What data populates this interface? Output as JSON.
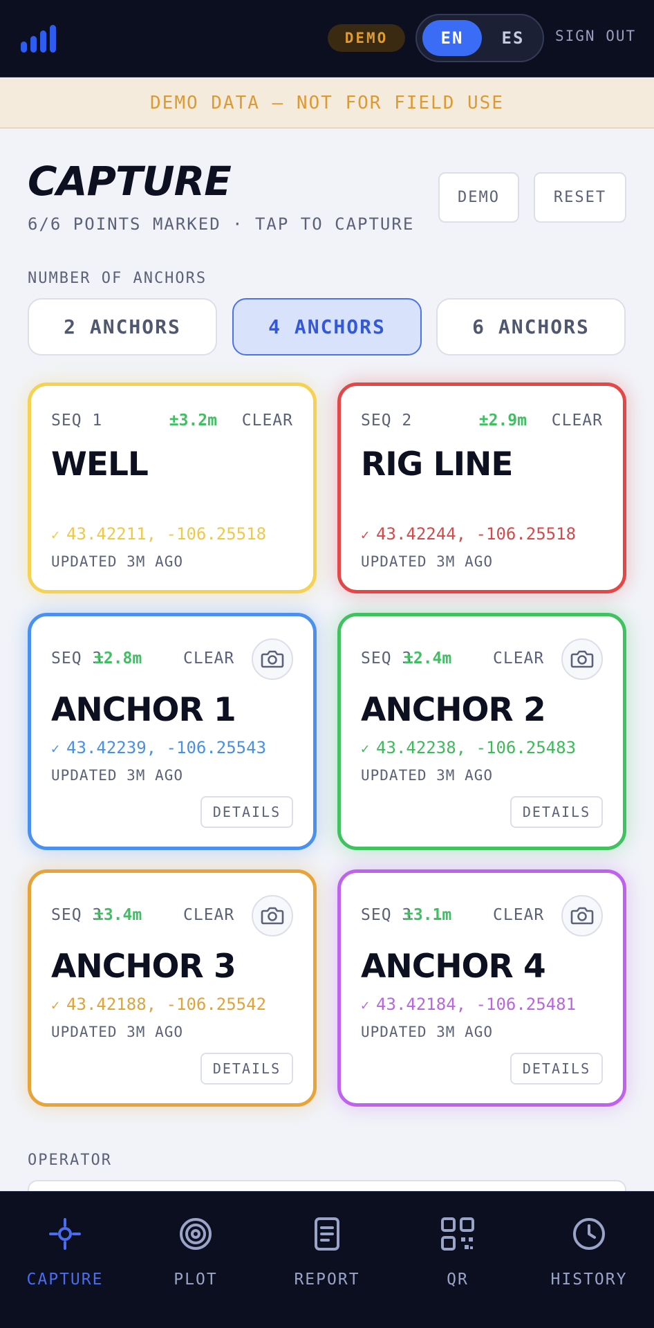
{
  "header": {
    "demo_badge": "DEMO",
    "lang_en": "EN",
    "lang_es": "ES",
    "sign_out": "SIGN OUT"
  },
  "banner": "DEMO DATA — NOT FOR FIELD USE",
  "page": {
    "title": "CAPTURE",
    "subtitle": "6/6 POINTS MARKED · TAP TO CAPTURE",
    "demo_button": "DEMO",
    "reset_button": "RESET"
  },
  "anchors": {
    "label": "NUMBER OF ANCHORS",
    "options": [
      "2 ANCHORS",
      "4 ANCHORS",
      "6 ANCHORS"
    ],
    "selected": "4 ANCHORS"
  },
  "cards": [
    {
      "seq": "SEQ 1",
      "accuracy": "±3.2m",
      "status": "CLEAR",
      "name": "WELL",
      "coords": "43.42211, -106.25518",
      "updated": "UPDATED 3M AGO",
      "color": "#f5d254",
      "coord_color": "#f0c848",
      "camera_icon": false,
      "details": ""
    },
    {
      "seq": "SEQ 2",
      "accuracy": "±2.9m",
      "status": "CLEAR",
      "name": "RIG LINE",
      "coords": "43.42244, -106.25518",
      "updated": "UPDATED 3M AGO",
      "color": "#e34848",
      "coord_color": "#d34a4a",
      "camera_icon": false,
      "details": ""
    },
    {
      "seq": "SEQ 3",
      "accuracy": "±2.8m",
      "status": "CLEAR",
      "name": "ANCHOR 1",
      "coords": "43.42239, -106.25543",
      "updated": "UPDATED 3M AGO",
      "color": "#4a90ee",
      "coord_color": "#4a90e2",
      "camera_icon": true,
      "details": "DETAILS"
    },
    {
      "seq": "SEQ 3",
      "accuracy": "±2.4m",
      "status": "CLEAR",
      "name": "ANCHOR 2",
      "coords": "43.42238, -106.25483",
      "updated": "UPDATED 3M AGO",
      "color": "#3fc25f",
      "coord_color": "#3fb85c",
      "camera_icon": true,
      "details": "DETAILS"
    },
    {
      "seq": "SEQ 3",
      "accuracy": "±3.4m",
      "status": "CLEAR",
      "name": "ANCHOR 3",
      "coords": "43.42188, -106.25542",
      "updated": "UPDATED 3M AGO",
      "color": "#e6a43a",
      "coord_color": "#dfa33a",
      "camera_icon": true,
      "details": "DETAILS"
    },
    {
      "seq": "SEQ 3",
      "accuracy": "±3.1m",
      "status": "CLEAR",
      "name": "ANCHOR 4",
      "coords": "43.42184, -106.25481",
      "updated": "UPDATED 3M AGO",
      "color": "#bf63ee",
      "coord_color": "#b866e0",
      "camera_icon": true,
      "details": "DETAILS"
    }
  ],
  "operator_label": "OPERATOR",
  "nav": [
    {
      "label": "CAPTURE",
      "icon": "crosshair-icon",
      "active": true
    },
    {
      "label": "PLOT",
      "icon": "target-icon",
      "active": false
    },
    {
      "label": "REPORT",
      "icon": "document-icon",
      "active": false
    },
    {
      "label": "QR",
      "icon": "qr-code-icon",
      "active": false
    },
    {
      "label": "HISTORY",
      "icon": "clock-icon",
      "active": false
    }
  ],
  "colors": {
    "accent": "#3b6cf6",
    "header_bg": "#0b0f1f",
    "accuracy_green": "#3fbf62"
  }
}
